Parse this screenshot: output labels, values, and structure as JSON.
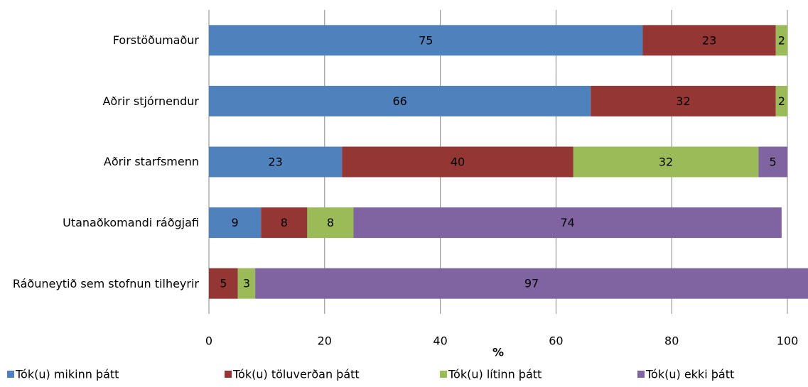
{
  "chart_data": {
    "type": "stacked-barh",
    "categories": [
      "Forstöðumaður",
      "Aðrir stjórnendur",
      "Aðrir starfsmenn",
      "Utanaðkomandi ráðgjafi",
      "Ráðuneytið sem stofnun tilheyrir"
    ],
    "series": [
      {
        "name": "Tók(u) mikinn þátt",
        "color": "#4f81bd",
        "values": [
          75,
          66,
          23,
          9,
          null
        ]
      },
      {
        "name": "Tók(u) töluverðan þátt",
        "color": "#943634",
        "values": [
          23,
          32,
          40,
          8,
          5
        ]
      },
      {
        "name": "Tók(u) lítinn þátt",
        "color": "#9bbb59",
        "values": [
          2,
          2,
          32,
          8,
          3
        ]
      },
      {
        "name": "Tók(u) ekki þátt",
        "color": "#8064a2",
        "values": [
          null,
          null,
          5,
          74,
          97
        ]
      }
    ],
    "x_label": "%",
    "xlim": [
      0,
      100
    ],
    "xticks": [
      0,
      20,
      40,
      60,
      80,
      100
    ],
    "grid": true,
    "legend": "bottom"
  }
}
